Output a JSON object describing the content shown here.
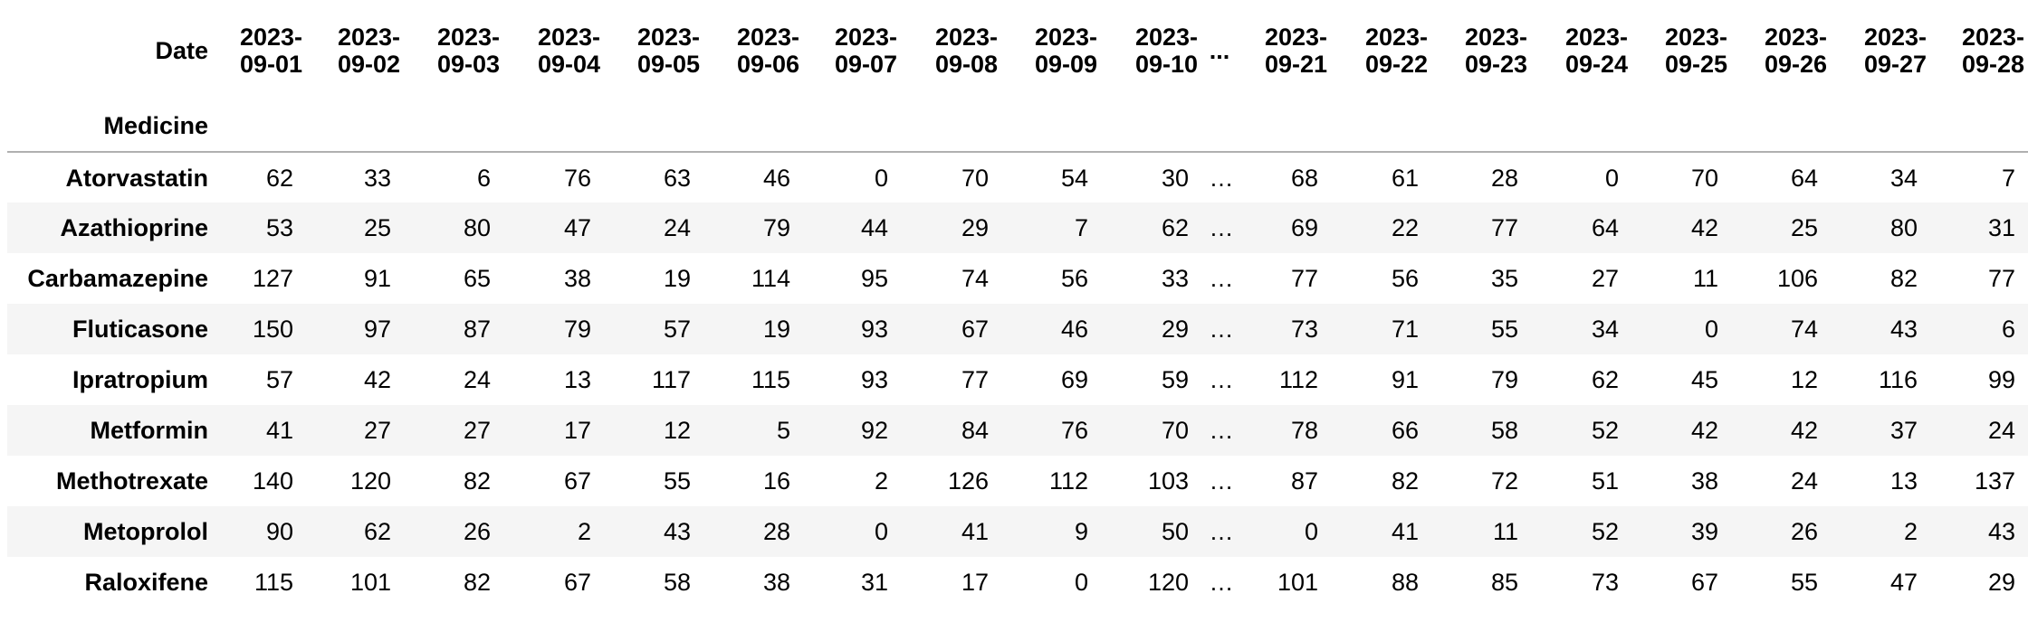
{
  "table": {
    "columns_axis_label": "Date",
    "index_axis_label": "Medicine",
    "columns": [
      "2023-09-01",
      "2023-09-02",
      "2023-09-03",
      "2023-09-04",
      "2023-09-05",
      "2023-09-06",
      "2023-09-07",
      "2023-09-08",
      "2023-09-09",
      "2023-09-10",
      "...",
      "2023-09-21",
      "2023-09-22",
      "2023-09-23",
      "2023-09-24",
      "2023-09-25",
      "2023-09-26",
      "2023-09-27",
      "2023-09-28"
    ],
    "rows": [
      {
        "label": "Atorvastatin",
        "values": [
          "62",
          "33",
          "6",
          "76",
          "63",
          "46",
          "0",
          "70",
          "54",
          "30",
          "…",
          "68",
          "61",
          "28",
          "0",
          "70",
          "64",
          "34",
          "7"
        ]
      },
      {
        "label": "Azathioprine",
        "values": [
          "53",
          "25",
          "80",
          "47",
          "24",
          "79",
          "44",
          "29",
          "7",
          "62",
          "…",
          "69",
          "22",
          "77",
          "64",
          "42",
          "25",
          "80",
          "31"
        ]
      },
      {
        "label": "Carbamazepine",
        "values": [
          "127",
          "91",
          "65",
          "38",
          "19",
          "114",
          "95",
          "74",
          "56",
          "33",
          "…",
          "77",
          "56",
          "35",
          "27",
          "11",
          "106",
          "82",
          "77"
        ]
      },
      {
        "label": "Fluticasone",
        "values": [
          "150",
          "97",
          "87",
          "79",
          "57",
          "19",
          "93",
          "67",
          "46",
          "29",
          "…",
          "73",
          "71",
          "55",
          "34",
          "0",
          "74",
          "43",
          "6"
        ]
      },
      {
        "label": "Ipratropium",
        "values": [
          "57",
          "42",
          "24",
          "13",
          "117",
          "115",
          "93",
          "77",
          "69",
          "59",
          "…",
          "112",
          "91",
          "79",
          "62",
          "45",
          "12",
          "116",
          "99"
        ]
      },
      {
        "label": "Metformin",
        "values": [
          "41",
          "27",
          "27",
          "17",
          "12",
          "5",
          "92",
          "84",
          "76",
          "70",
          "…",
          "78",
          "66",
          "58",
          "52",
          "42",
          "42",
          "37",
          "24"
        ]
      },
      {
        "label": "Methotrexate",
        "values": [
          "140",
          "120",
          "82",
          "67",
          "55",
          "16",
          "2",
          "126",
          "112",
          "103",
          "…",
          "87",
          "82",
          "72",
          "51",
          "38",
          "24",
          "13",
          "137"
        ]
      },
      {
        "label": "Metoprolol",
        "values": [
          "90",
          "62",
          "26",
          "2",
          "43",
          "28",
          "0",
          "41",
          "9",
          "50",
          "…",
          "0",
          "41",
          "11",
          "52",
          "39",
          "26",
          "2",
          "43"
        ]
      },
      {
        "label": "Raloxifene",
        "values": [
          "115",
          "101",
          "82",
          "67",
          "58",
          "38",
          "31",
          "17",
          "0",
          "120",
          "…",
          "101",
          "88",
          "85",
          "73",
          "67",
          "55",
          "47",
          "29"
        ]
      }
    ]
  }
}
